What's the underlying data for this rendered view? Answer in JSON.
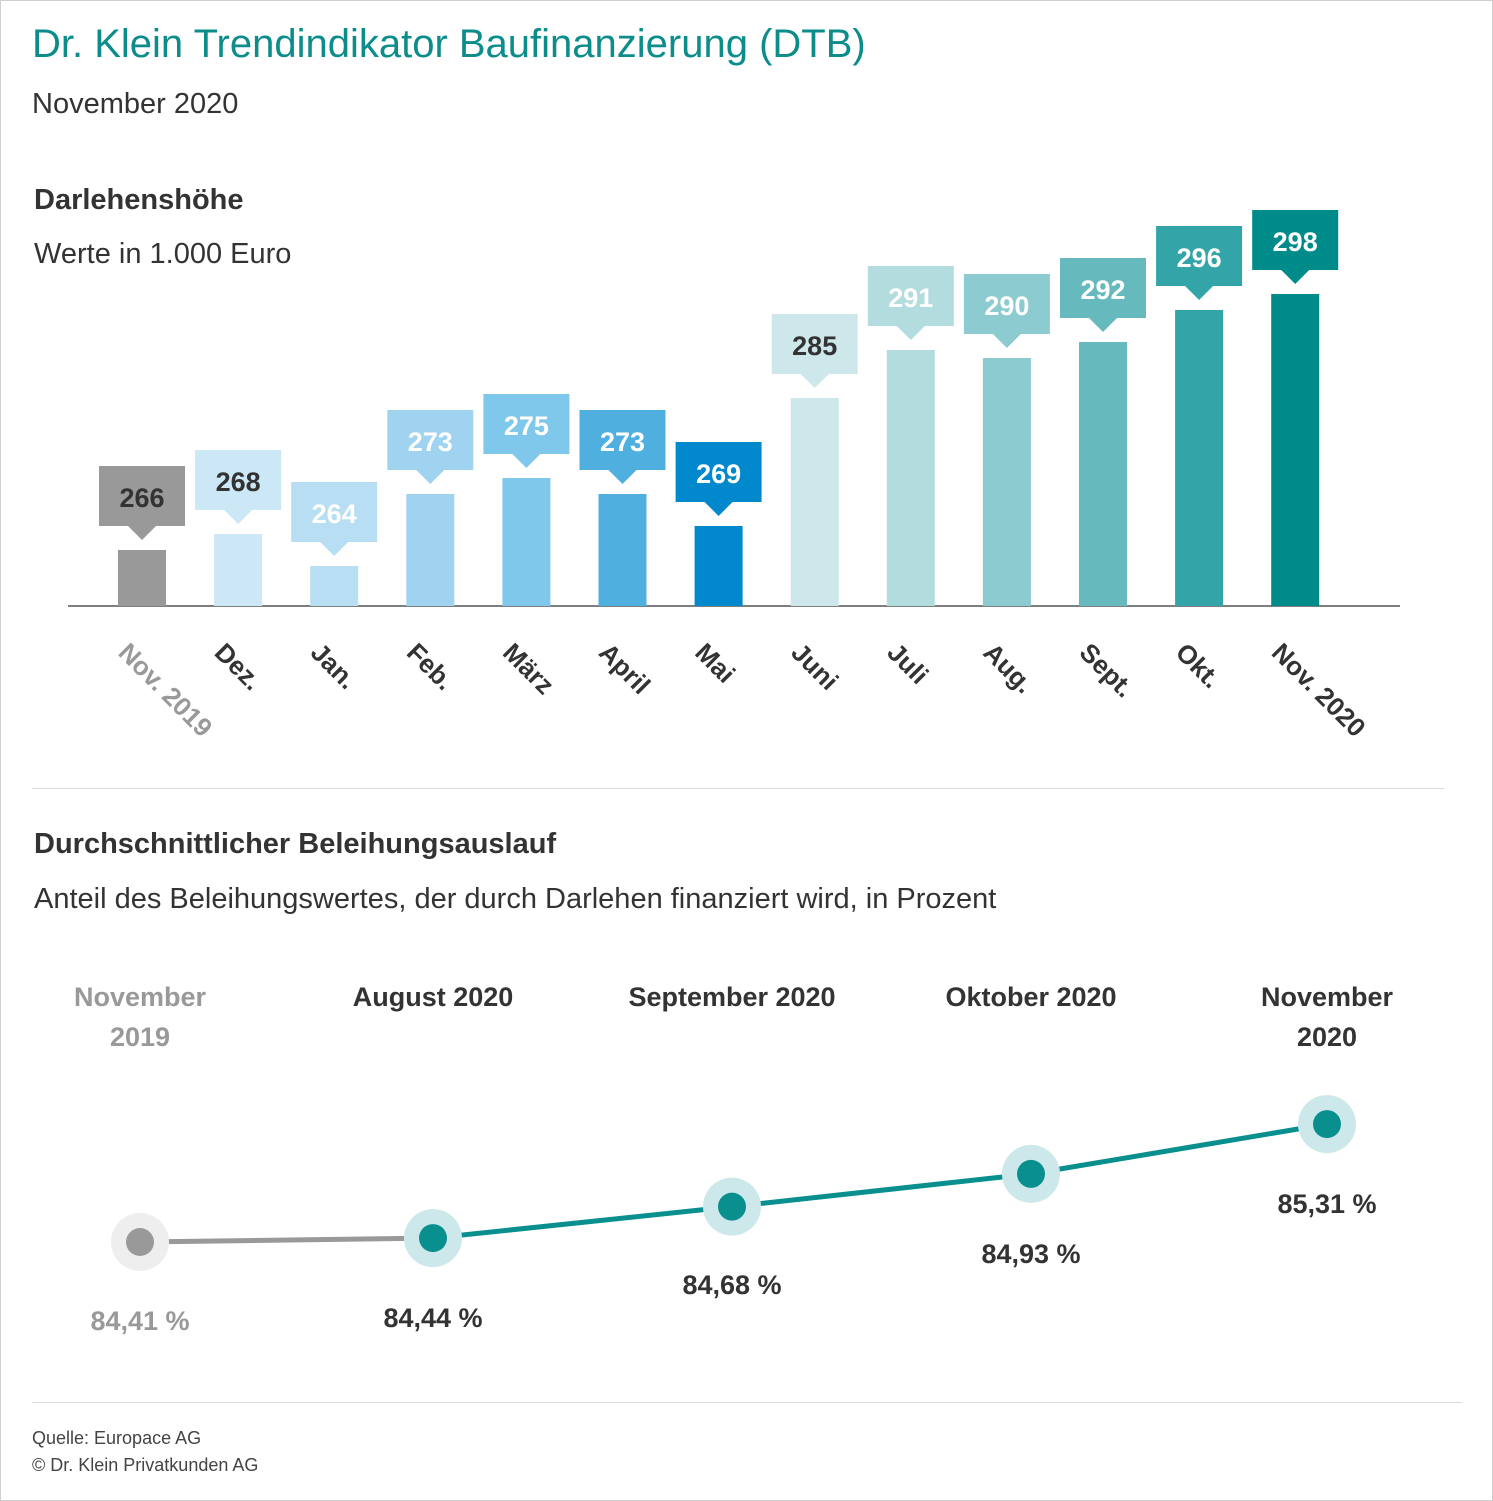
{
  "header": {
    "title": "Dr. Klein Trendindikator Baufinanzierung (DTB)",
    "subtitle": "November 2020"
  },
  "footer": {
    "source": "Quelle: Europace AG",
    "copyright": "© Dr. Klein Privatkunden AG"
  },
  "colors": {
    "title": "#0d8c8c",
    "bars": [
      "#999999",
      "#cce7f6",
      "#b8def3",
      "#9fd3f0",
      "#80c7ec",
      "#4fb0e0",
      "#0288cc",
      "#cde7ea",
      "#b3dcdf",
      "#8ccbcf",
      "#66babd",
      "#33a4a8",
      "#008b8b"
    ],
    "label_text": [
      "#333333",
      "#333333",
      "#ffffff",
      "#ffffff",
      "#ffffff",
      "#ffffff",
      "#ffffff",
      "#333333",
      "#ffffff",
      "#ffffff",
      "#ffffff",
      "#ffffff",
      "#ffffff"
    ],
    "cat_text": [
      "#999999",
      "#333333",
      "#333333",
      "#333333",
      "#333333",
      "#333333",
      "#333333",
      "#333333",
      "#333333",
      "#333333",
      "#333333",
      "#333333",
      "#333333"
    ],
    "line_main": "#0a8f8f",
    "line_past": "#999999",
    "halo_main": "#cde8ea",
    "halo_past": "#eeeeee"
  },
  "chart_data": [
    {
      "type": "bar",
      "title": "Darlehenshöhe",
      "subtitle": "Werte in 1.000 Euro",
      "categories": [
        "Nov. 2019",
        "Dez.",
        "Jan.",
        "Feb.",
        "März",
        "April",
        "Mai",
        "Juni",
        "Juli",
        "Aug.",
        "Sept.",
        "Okt.",
        "Nov. 2020"
      ],
      "values": [
        266,
        268,
        264,
        273,
        275,
        273,
        269,
        285,
        291,
        290,
        292,
        296,
        298
      ],
      "labels": [
        "266",
        "268",
        "264",
        "273",
        "275",
        "273",
        "269",
        "285",
        "291",
        "290",
        "292",
        "296",
        "298"
      ],
      "ylim": [
        259,
        300
      ],
      "grid": false
    },
    {
      "type": "line",
      "title": "Durchschnittlicher Beleihungsauslauf",
      "subtitle": "Anteil des Beleihungswertes, der durch Darlehen finanziert wird, in Prozent",
      "categories": [
        [
          "November",
          "2019"
        ],
        [
          "August 2020"
        ],
        [
          "September 2020"
        ],
        [
          "Oktober 2020"
        ],
        [
          "November",
          "2020"
        ]
      ],
      "values": [
        84.41,
        84.44,
        84.68,
        84.93,
        85.31
      ],
      "labels": [
        "84,41 %",
        "84,44 %",
        "84,68 %",
        "84,93 %",
        "85,31 %"
      ],
      "ylim": [
        84.3,
        85.4
      ]
    }
  ]
}
